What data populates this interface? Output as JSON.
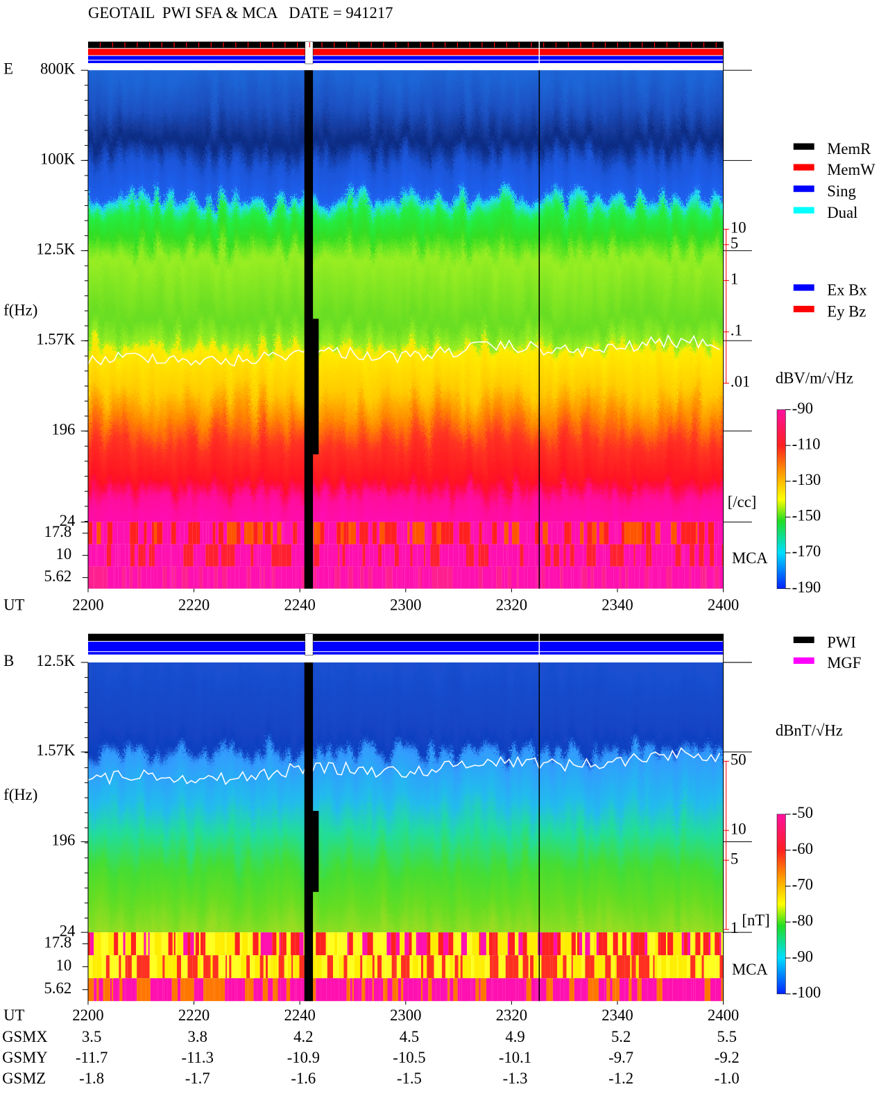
{
  "title": "GEOTAIL  PWI SFA & MCA   DATE = 941217",
  "chart_data": [
    {
      "type": "spectrogram",
      "panel_label": "E",
      "y_label": "f(Hz)",
      "x_label": "UT",
      "log_y": true,
      "ylim": [
        24,
        800000
      ],
      "yticks": [
        {
          "value": 800000,
          "label": "800K"
        },
        {
          "value": 100000,
          "label": "100K"
        },
        {
          "value": 12500,
          "label": "12.5K"
        },
        {
          "value": 1570,
          "label": "1.57K"
        },
        196,
        24
      ],
      "mca_label": "MCA",
      "mca_channels": [
        "17.8",
        "10",
        "5.62"
      ],
      "xlim": [
        0,
        120
      ],
      "xticks": [
        {
          "value": 0,
          "label": "2200"
        },
        {
          "value": 20,
          "label": "2220"
        },
        {
          "value": 40,
          "label": "2240"
        },
        {
          "value": 60,
          "label": "2300"
        },
        {
          "value": 80,
          "label": "2320"
        },
        {
          "value": 100,
          "label": "2340"
        },
        {
          "value": 120,
          "label": "2400"
        }
      ],
      "y2_label": "[/cc]",
      "y2_color": "#ff0000",
      "y2lim": [
        0.01,
        10
      ],
      "y2ticks": [
        10,
        5,
        1,
        {
          "value": 0.1,
          "label": ".1"
        },
        {
          "value": 0.01,
          "label": ".01"
        }
      ],
      "colorbar": {
        "label": "dBV/m/√Hz",
        "lim": [
          -190,
          -90
        ],
        "ticks": [
          -90,
          -110,
          -130,
          -150,
          -170,
          -190
        ]
      },
      "legend": [
        {
          "name": "MemR",
          "color": "#000000"
        },
        {
          "name": "MemW",
          "color": "#ff0000"
        },
        {
          "name": "Sing",
          "color": "#0000ff"
        },
        {
          "name": "Dual",
          "color": "#00ffff"
        },
        {
          "name": "Ex Bx",
          "color": "#0000ff"
        },
        {
          "name": "Ey Bz",
          "color": "#ff0000"
        }
      ]
    },
    {
      "type": "spectrogram",
      "panel_label": "B",
      "y_label": "f(Hz)",
      "x_label": "UT",
      "log_y": true,
      "ylim": [
        24,
        12500
      ],
      "yticks": [
        {
          "value": 12500,
          "label": "12.5K"
        },
        {
          "value": 1570,
          "label": "1.57K"
        },
        196,
        24
      ],
      "mca_label": "MCA",
      "mca_channels": [
        "17.8",
        "10",
        "5.62"
      ],
      "xlim": [
        0,
        120
      ],
      "xticks": [
        {
          "value": 0,
          "label": "2200"
        },
        {
          "value": 20,
          "label": "2220"
        },
        {
          "value": 40,
          "label": "2240"
        },
        {
          "value": 60,
          "label": "2300"
        },
        {
          "value": 80,
          "label": "2320"
        },
        {
          "value": 100,
          "label": "2340"
        },
        {
          "value": 120,
          "label": "2400"
        }
      ],
      "y2_label": "[nT]",
      "y2_color": "#ff0000",
      "y2lim": [
        1,
        50
      ],
      "y2ticks": [
        50,
        10,
        5,
        1
      ],
      "colorbar": {
        "label": "dBnT/√Hz",
        "lim": [
          -100,
          -50
        ],
        "ticks": [
          -50,
          -60,
          -70,
          -80,
          -90,
          -100
        ]
      },
      "legend": [
        {
          "name": "PWI",
          "color": "#000000"
        },
        {
          "name": "MGF",
          "color": "#ff00ff"
        }
      ]
    }
  ],
  "orbit": {
    "rows": [
      {
        "label": "GSMX",
        "values": [
          "3.5",
          "3.8",
          "4.2",
          "4.5",
          "4.9",
          "5.2",
          "5.5"
        ]
      },
      {
        "label": "GSMY",
        "values": [
          "-11.7",
          "-11.3",
          "-10.9",
          "-10.5",
          "-10.1",
          "-9.7",
          "-9.2"
        ]
      },
      {
        "label": "GSMZ",
        "values": [
          "-1.8",
          "-1.7",
          "-1.6",
          "-1.5",
          "-1.3",
          "-1.2",
          "-1.0"
        ]
      }
    ]
  }
}
